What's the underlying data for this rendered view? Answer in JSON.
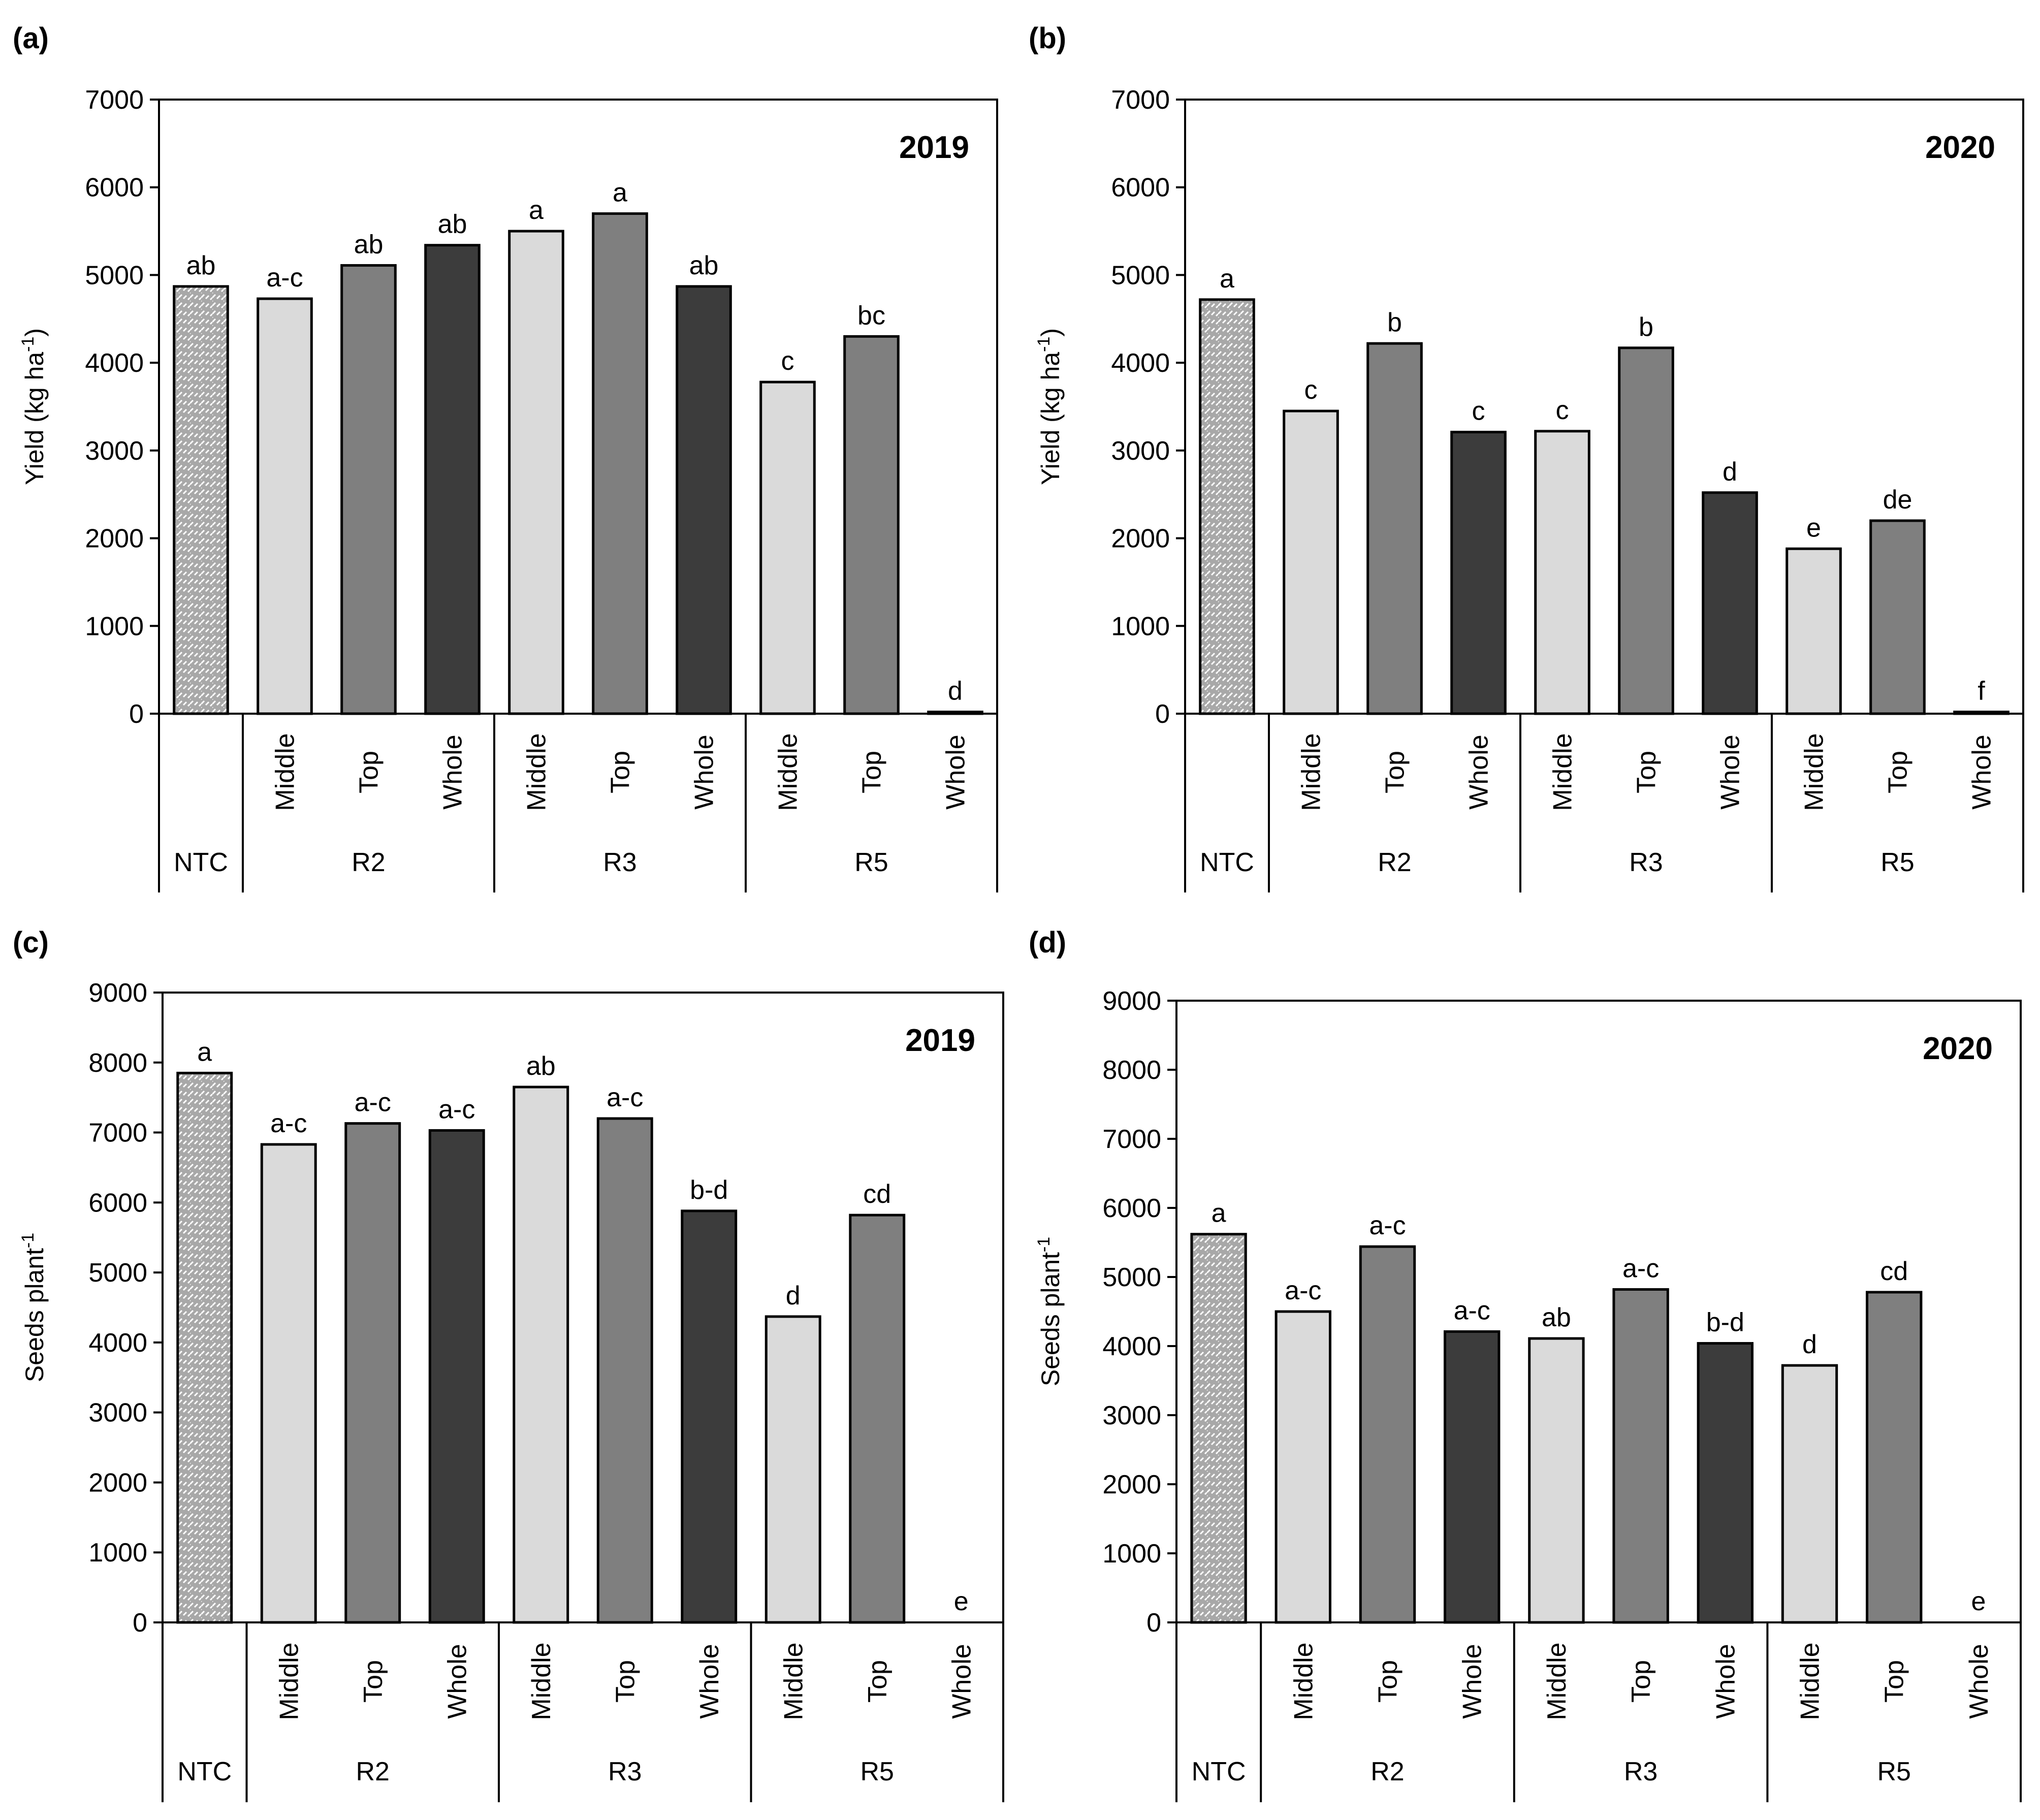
{
  "figure": {
    "colors": {
      "ntc": "#a8a8a8",
      "middle": "#dadada",
      "top": "#7f7f7f",
      "whole": "#3c3c3c",
      "axis": "#000000"
    }
  },
  "chart_data": [
    {
      "panel": "(a)",
      "year": "2019",
      "type": "bar",
      "ylabel": "Yield (kg ha",
      "ylabel_sup": "-1",
      "ylim": [
        0,
        7000
      ],
      "yticks": [
        "0",
        "1000",
        "2000",
        "3000",
        "4000",
        "5000",
        "6000",
        "7000"
      ],
      "categories": [
        "",
        "Middle",
        "Top",
        "Whole",
        "Middle",
        "Top",
        "Whole",
        "Middle",
        "Top",
        "Whole"
      ],
      "series": [
        "NTC",
        "Middle",
        "Top",
        "Whole",
        "Middle",
        "Top",
        "Whole",
        "Middle",
        "Top",
        "Whole"
      ],
      "groups": [
        "NTC",
        "R2",
        "R3",
        "R5"
      ],
      "values": [
        4870,
        4730,
        5110,
        5340,
        5500,
        5700,
        4870,
        3780,
        4300,
        20
      ],
      "letters": [
        "ab",
        "a-c",
        "ab",
        "ab",
        "a",
        "a",
        "ab",
        "c",
        "bc",
        "d"
      ]
    },
    {
      "panel": "(b)",
      "year": "2020",
      "type": "bar",
      "ylabel": "Yield (kg ha",
      "ylabel_sup": "-1",
      "ylim": [
        0,
        7000
      ],
      "yticks": [
        "0",
        "1000",
        "2000",
        "3000",
        "4000",
        "5000",
        "6000",
        "7000"
      ],
      "categories": [
        "",
        "Middle",
        "Top",
        "Whole",
        "Middle",
        "Top",
        "Whole",
        "Middle",
        "Top",
        "Whole"
      ],
      "series": [
        "NTC",
        "Middle",
        "Top",
        "Whole",
        "Middle",
        "Top",
        "Whole",
        "Middle",
        "Top",
        "Whole"
      ],
      "groups": [
        "NTC",
        "R2",
        "R3",
        "R5"
      ],
      "values": [
        4720,
        3450,
        4220,
        3210,
        3220,
        4170,
        2520,
        1880,
        2200,
        20
      ],
      "letters": [
        "a",
        "c",
        "b",
        "c",
        "c",
        "b",
        "d",
        "e",
        "de",
        "f"
      ]
    },
    {
      "panel": "(c)",
      "year": "2019",
      "type": "bar",
      "ylabel": "Seeds plant",
      "ylabel_sup": "-1",
      "ylim": [
        0,
        9000
      ],
      "yticks": [
        "0",
        "1000",
        "2000",
        "3000",
        "4000",
        "5000",
        "6000",
        "7000",
        "8000",
        "9000"
      ],
      "categories": [
        "",
        "Middle",
        "Top",
        "Whole",
        "Middle",
        "Top",
        "Whole",
        "Middle",
        "Top",
        "Whole"
      ],
      "series": [
        "NTC",
        "Middle",
        "Top",
        "Whole",
        "Middle",
        "Top",
        "Whole",
        "Middle",
        "Top",
        "Whole"
      ],
      "groups": [
        "NTC",
        "R2",
        "R3",
        "R5"
      ],
      "values": [
        7850,
        6830,
        7130,
        7030,
        7650,
        7200,
        5880,
        4370,
        5820,
        0
      ],
      "letters": [
        "a",
        "a-c",
        "a-c",
        "a-c",
        "ab",
        "a-c",
        "b-d",
        "d",
        "cd",
        "e"
      ]
    },
    {
      "panel": "(d)",
      "year": "2020",
      "type": "bar",
      "ylabel": "Seeds plant",
      "ylabel_sup": "-1",
      "ylim": [
        0,
        9000
      ],
      "yticks": [
        "0",
        "1000",
        "2000",
        "3000",
        "4000",
        "5000",
        "6000",
        "7000",
        "8000",
        "9000"
      ],
      "categories": [
        "",
        "Middle",
        "Top",
        "Whole",
        "Middle",
        "Top",
        "Whole",
        "Middle",
        "Top",
        "Whole"
      ],
      "series": [
        "NTC",
        "Middle",
        "Top",
        "Whole",
        "Middle",
        "Top",
        "Whole",
        "Middle",
        "Top",
        "Whole"
      ],
      "groups": [
        "NTC",
        "R2",
        "R3",
        "R5"
      ],
      "values": [
        5620,
        4500,
        5440,
        4210,
        4110,
        4820,
        4040,
        3720,
        4780,
        0
      ],
      "letters": [
        "a",
        "a-c",
        "a-c",
        "a-c",
        "ab",
        "a-c",
        "b-d",
        "d",
        "cd",
        "e"
      ]
    }
  ]
}
